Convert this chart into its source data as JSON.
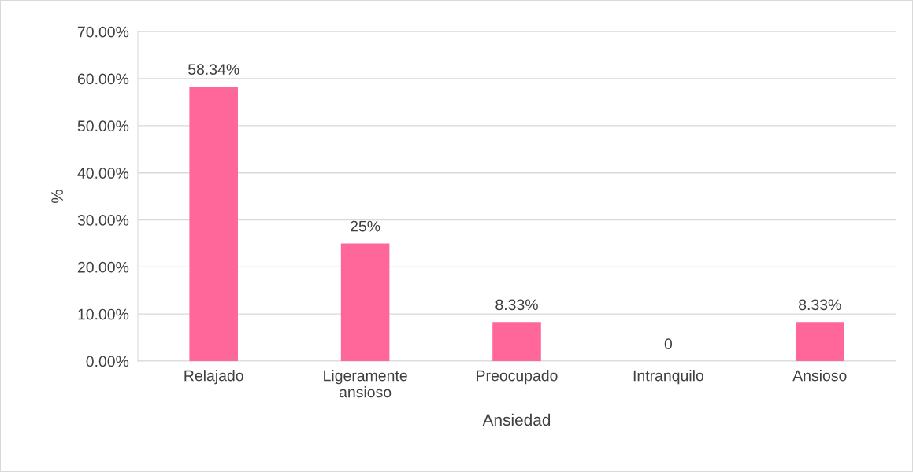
{
  "chart_data": {
    "type": "bar",
    "categories": [
      "Relajado",
      "Ligeramente\nansioso",
      "Preocupado",
      "Intranquilo",
      "Ansioso"
    ],
    "values": [
      58.34,
      25,
      8.33,
      0,
      8.33
    ],
    "value_labels": [
      "58.34%",
      "25%",
      "8.33%",
      "0",
      "8.33%"
    ],
    "color": "#ff6699",
    "xlabel": "Ansiedad",
    "ylabel": "%",
    "ylim": [
      0,
      70
    ],
    "yticks": [
      {
        "value": 0,
        "label": "0.00%"
      },
      {
        "value": 10,
        "label": "10.00%"
      },
      {
        "value": 20,
        "label": "20.00%"
      },
      {
        "value": 30,
        "label": "30.00%"
      },
      {
        "value": 40,
        "label": "40.00%"
      },
      {
        "value": 50,
        "label": "50.00%"
      },
      {
        "value": 60,
        "label": "60.00%"
      },
      {
        "value": 70,
        "label": "70.00%"
      }
    ],
    "grid": "y"
  }
}
